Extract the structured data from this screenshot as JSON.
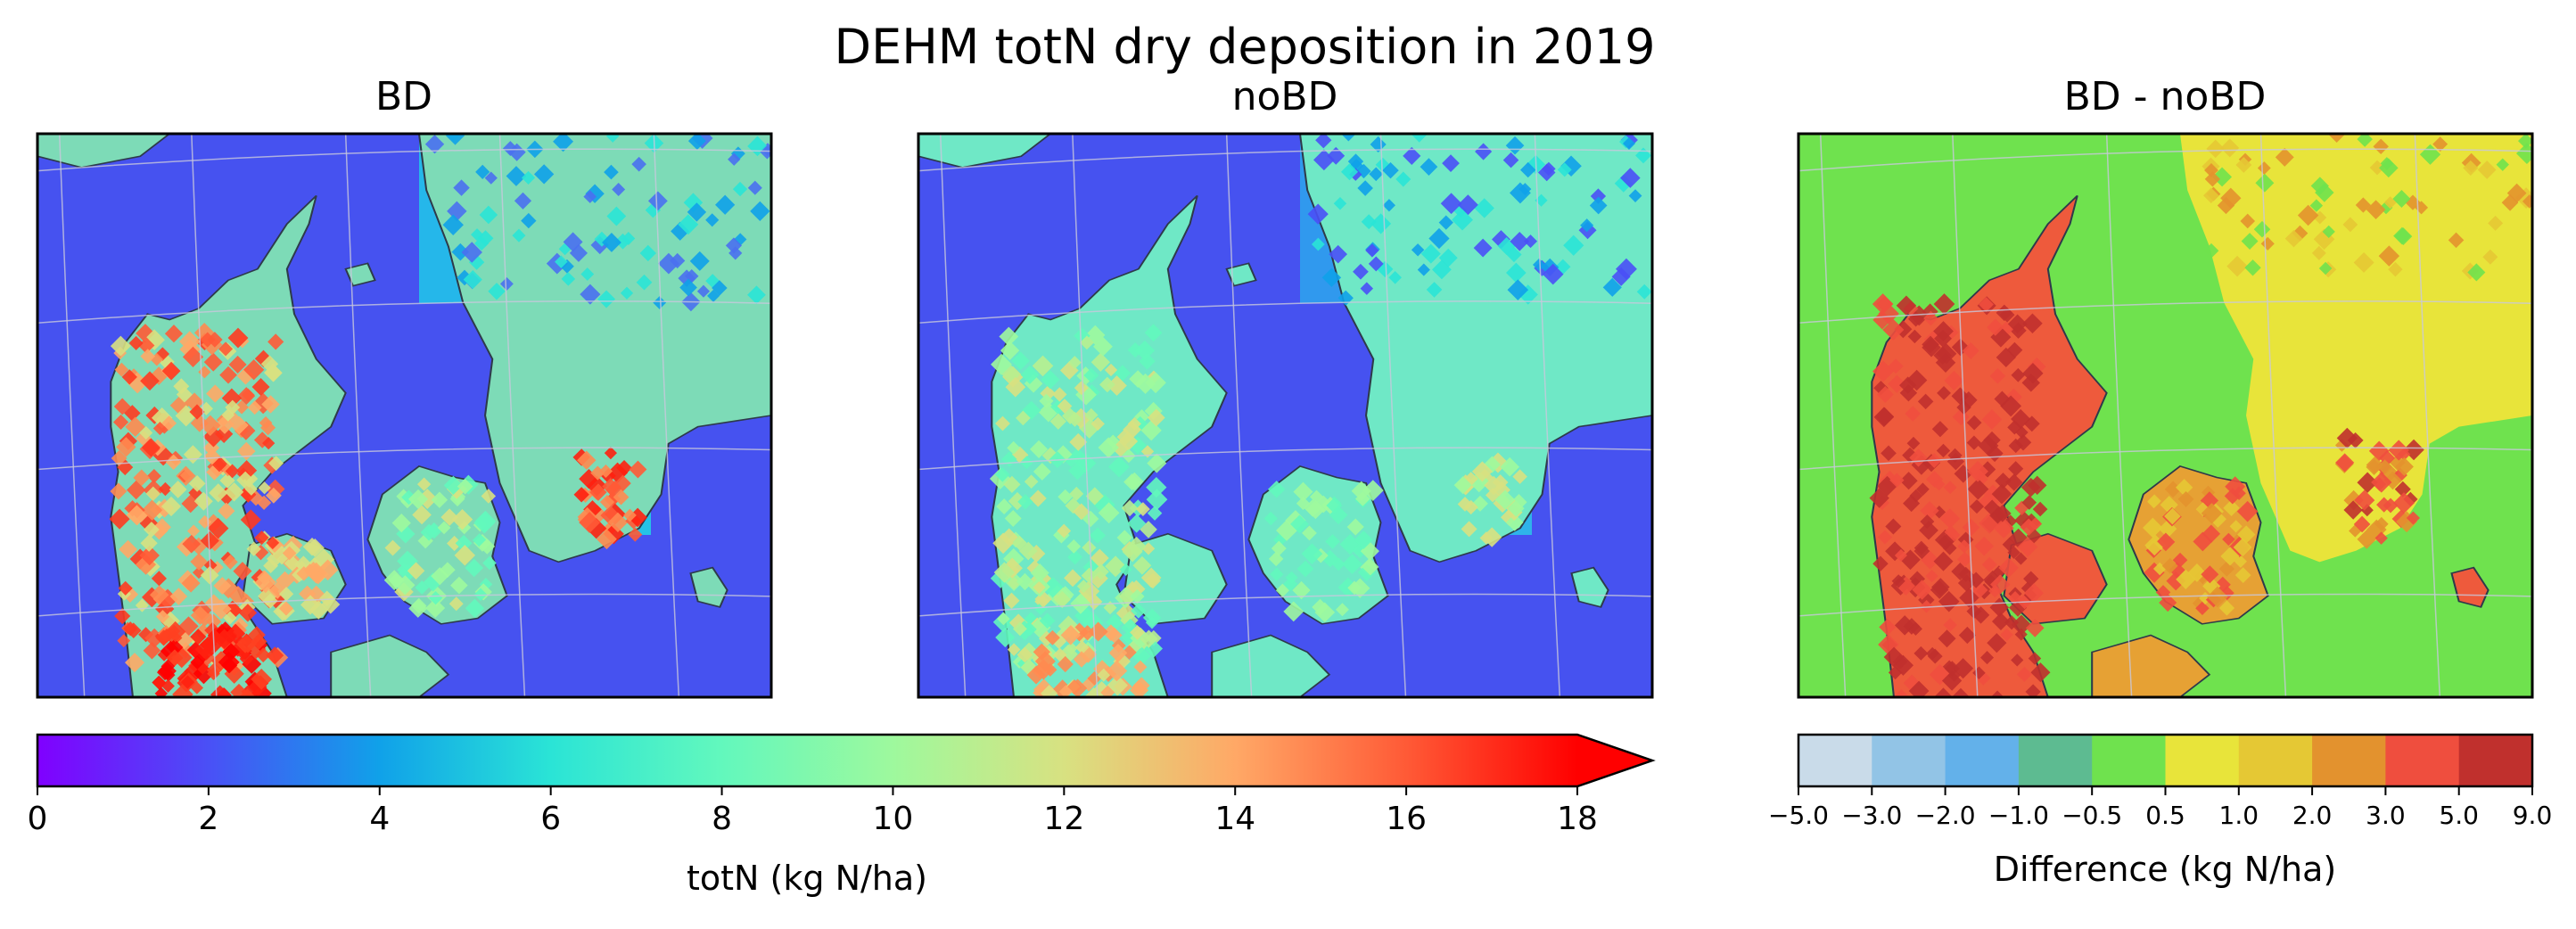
{
  "figure_title": "DEHM totN dry deposition in 2019",
  "chart_data": [
    {
      "type": "heatmap",
      "panel": "BD",
      "title": "BD",
      "description_region": "Denmark and southern Sweden",
      "colorbar_ref": "totN"
    },
    {
      "type": "heatmap",
      "panel": "noBD",
      "title": "noBD",
      "colorbar_ref": "totN"
    },
    {
      "type": "heatmap",
      "panel": "diff",
      "title": "BD - noBD",
      "colorbar_ref": "difference"
    }
  ],
  "colorbars": {
    "totN": {
      "label": "totN (kg N/ha)",
      "range": [
        0,
        18
      ],
      "extend": "max",
      "ticks": [
        "0",
        "2",
        "4",
        "6",
        "8",
        "10",
        "12",
        "14",
        "16",
        "18"
      ],
      "colormap": "rainbow"
    },
    "difference": {
      "label": "Difference (kg N/ha)",
      "tick_labels": [
        "−5.0",
        "−3.0",
        "−2.0",
        "−1.0",
        "−0.5",
        "0.5",
        "1.0",
        "2.0",
        "3.0",
        "5.0",
        "9.0"
      ],
      "colors": [
        "#c9dbe9",
        "#92c4e6",
        "#63b1ea",
        "#5dbb91",
        "#6fe24e",
        "#e8e43a",
        "#e5c834",
        "#e3922e",
        "#ef4e3e",
        "#c0302d"
      ]
    }
  },
  "colors": {
    "sea_low": "#4652f0",
    "land_edge": "#2e3a4a",
    "grid": "#c8c8dc",
    "diff_background": "#6fe24e"
  }
}
